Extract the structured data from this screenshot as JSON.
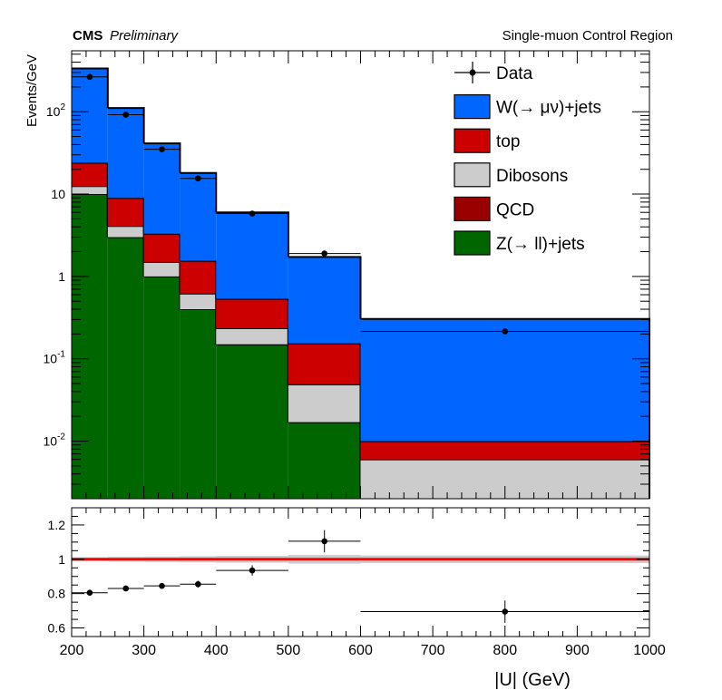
{
  "header": {
    "experiment": "CMS",
    "status": "Preliminary",
    "region": "Single-muon Control Region"
  },
  "chart_data": [
    {
      "type": "bar",
      "stacked": true,
      "histogram": true,
      "ylabel": "Events/GeV",
      "xlabel": "|U| (GeV)",
      "yscale": "log",
      "ylim": [
        0.002,
        550
      ],
      "xlim": [
        200,
        1000
      ],
      "y_tick_labels": [
        "10-2",
        "10-1",
        "1",
        "10",
        "102"
      ],
      "bin_edges": [
        200,
        250,
        300,
        350,
        400,
        500,
        600,
        1000
      ],
      "series": [
        {
          "name": "Z(→ ll)+jets",
          "color": "#006600",
          "values": [
            10,
            3,
            1,
            0.4,
            0.15,
            0.017,
            0
          ]
        },
        {
          "name": "QCD",
          "color": "#990000",
          "values": [
            0,
            0,
            0,
            0,
            0,
            0,
            0
          ]
        },
        {
          "name": "Dibosons",
          "color": "#cccccc",
          "values": [
            2.5,
            1.1,
            0.5,
            0.22,
            0.085,
            0.032,
            0.006
          ]
        },
        {
          "name": "top",
          "color": "#cc0000",
          "values": [
            11.5,
            4.9,
            1.8,
            0.93,
            0.3,
            0.105,
            0.004
          ]
        },
        {
          "name": "W(→ μν)+jets",
          "color": "#0066ff",
          "values": [
            311,
            102,
            38,
            16.5,
            5.45,
            1.57,
            0.295
          ]
        }
      ],
      "totals": [
        335,
        111,
        41.3,
        18.05,
        5.985,
        1.724,
        0.305
      ],
      "data": {
        "name": "Data",
        "x": [
          225,
          275,
          325,
          375,
          450,
          550,
          800
        ],
        "y": [
          265,
          92,
          35,
          15.5,
          5.8,
          1.9,
          0.215
        ]
      },
      "legend": [
        "Data",
        "W(→ μν)+jets",
        "top",
        "Dibosons",
        "QCD",
        "Z(→ ll)+jets"
      ],
      "legend_position": "top-right"
    },
    {
      "type": "scatter",
      "subplot": "ratio",
      "xlabel": "|U| (GeV)",
      "ylim": [
        0.55,
        1.3
      ],
      "yticks": [
        0.6,
        0.8,
        1,
        1.2
      ],
      "y_tick_labels": [
        "0.6",
        "0.8",
        "1",
        "1.2"
      ],
      "xticks": [
        200,
        300,
        400,
        500,
        600,
        700,
        800,
        900,
        1000
      ],
      "x_tick_labels": [
        "200",
        "300",
        "400",
        "500",
        "600",
        "700",
        "800",
        "900",
        "1000"
      ],
      "reference_line": 1,
      "bin_edges": [
        200,
        250,
        300,
        350,
        400,
        500,
        600,
        1000
      ],
      "x": [
        225,
        275,
        325,
        375,
        450,
        550,
        800
      ],
      "y": [
        0.805,
        0.83,
        0.845,
        0.855,
        0.935,
        1.105,
        0.695
      ],
      "yerr": [
        0.006,
        0.008,
        0.012,
        0.02,
        0.03,
        0.065,
        0.065
      ],
      "band_halfwidth": [
        0.012,
        0.014,
        0.016,
        0.018,
        0.02,
        0.025,
        0.022
      ]
    }
  ]
}
